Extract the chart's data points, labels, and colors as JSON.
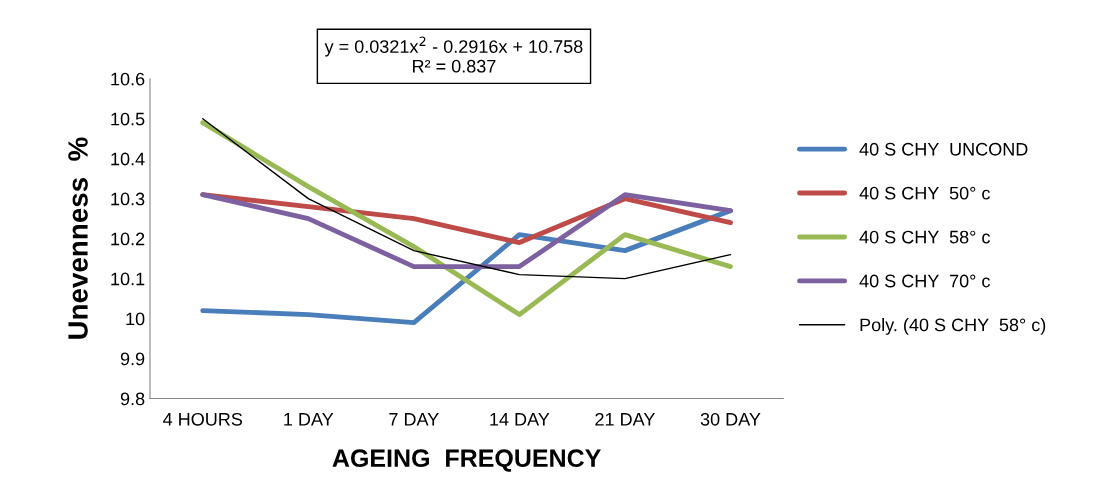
{
  "chart_data": {
    "type": "line",
    "xlabel": "AGEING  FREQUENCY",
    "ylabel": "Unevenness  %",
    "categories": [
      "4 HOURS",
      "1 DAY",
      "7 DAY",
      "14 DAY",
      "21 DAY",
      "30 DAY"
    ],
    "ylim": [
      9.8,
      10.6
    ],
    "yticks": [
      9.8,
      9.9,
      10,
      10.1,
      10.2,
      10.3,
      10.4,
      10.5,
      10.6
    ],
    "grid": false,
    "legend": "right",
    "marker": "none",
    "line_style": "solid",
    "annotations": [
      "y = 0.0321x$^{2}$ - 0.2916x + 10.758\nR² = 0.837"
    ],
    "series": [
      {
        "name": "40 S CHY  UNCOND",
        "color": "#4a7ebb",
        "values": [
          10.02,
          10.01,
          9.99,
          10.21,
          10.17,
          10.27
        ]
      },
      {
        "name": "40 S CHY  50° c",
        "color": "#be4b48",
        "values": [
          10.31,
          10.28,
          10.25,
          10.19,
          10.3,
          10.24
        ]
      },
      {
        "name": "40 S CHY  58° c",
        "color": "#98b954",
        "values": [
          10.49,
          10.33,
          10.18,
          10.01,
          10.21,
          10.13
        ]
      },
      {
        "name": "40 S CHY  70° c",
        "color": "#7d60a0",
        "values": [
          10.31,
          10.25,
          10.13,
          10.13,
          10.31,
          10.27
        ]
      },
      {
        "name": "Poly. (40 S CHY  58° c)",
        "color": "#000000",
        "type": "line",
        "values": [
          10.5,
          10.3,
          10.17,
          10.11,
          10.1,
          10.16
        ]
      }
    ]
  }
}
